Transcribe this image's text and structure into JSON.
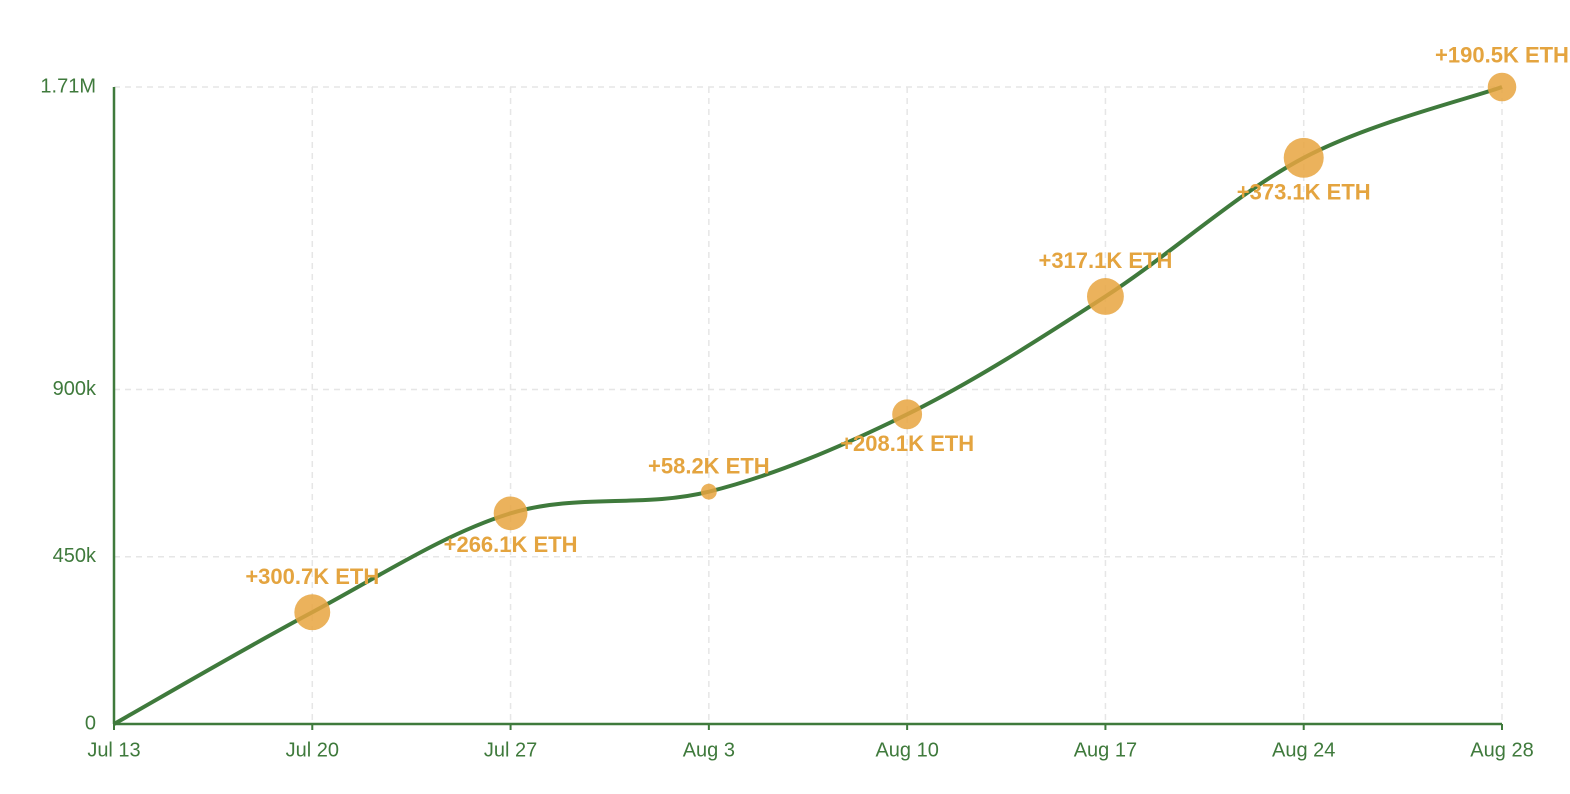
{
  "chart_data": {
    "type": "line",
    "categories": [
      "Jul 13",
      "Jul 20",
      "Jul 27",
      "Aug 3",
      "Aug 10",
      "Aug 17",
      "Aug 24",
      "Aug 28"
    ],
    "values": [
      0,
      300700,
      566800,
      625000,
      833100,
      1150200,
      1523300,
      1713800
    ],
    "sizes": [
      null,
      300700,
      266100,
      58200,
      208100,
      317100,
      373100,
      190500
    ],
    "size_labels": [
      null,
      "+300.7K ETH",
      "+266.1K ETH",
      "+58.2K ETH",
      "+208.1K ETH",
      "+317.1K ETH",
      "+373.1K ETH",
      "+190.5K ETH"
    ],
    "color": "#3f7a3c",
    "bubble_color": "#e8a53f",
    "ylim": [
      0,
      1713800
    ],
    "yticks": [
      0,
      {
        "value": 450000,
        "label": "450k"
      },
      {
        "value": 900000,
        "label": "900k"
      },
      {
        "value": 1713800,
        "label": "1.71M"
      }
    ],
    "grid": true
  }
}
